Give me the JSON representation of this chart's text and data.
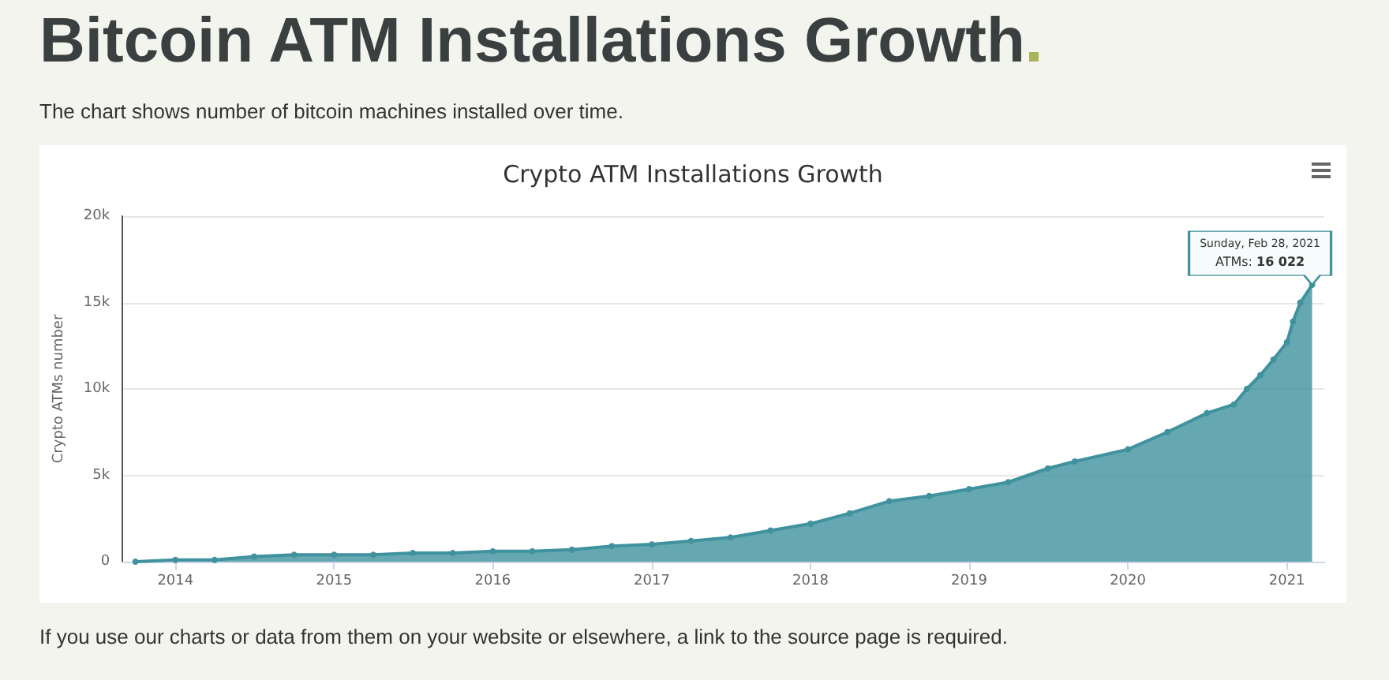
{
  "chart_data": {
    "type": "area",
    "title": "Bitcoin ATM Installations Growth",
    "subtitle": "The chart shows number of bitcoin machines installed over time.",
    "ylabel": "Crypto ATMs number",
    "annotations": [
      "Crypto ATM Installations Growth",
      "Sunday, Feb 28, 2021",
      "If you use our charts or data from them on your website or elsewhere, a link to the source page is required."
    ],
    "x": [
      "2013-10-01",
      "2014-01-01",
      "2014-04-01",
      "2014-07-01",
      "2014-10-01",
      "2015-01-01",
      "2015-04-01",
      "2015-07-01",
      "2015-10-01",
      "2016-01-01",
      "2016-04-01",
      "2016-07-01",
      "2016-10-01",
      "2017-01-01",
      "2017-04-01",
      "2017-07-01",
      "2017-10-01",
      "2018-01-01",
      "2018-04-01",
      "2018-07-01",
      "2018-10-01",
      "2019-01-01",
      "2019-04-01",
      "2019-07-01",
      "2019-09-01",
      "2020-01-01",
      "2020-04-01",
      "2020-07-01",
      "2020-09-01",
      "2020-10-01",
      "2020-11-01",
      "2020-12-01",
      "2021-01-01",
      "2021-01-15",
      "2021-02-01",
      "2021-02-28"
    ],
    "series": [
      {
        "name": "ATMs:",
        "color": "#3f929e",
        "values": [
          0,
          100,
          100,
          300,
          400,
          400,
          400,
          500,
          500,
          600,
          600,
          700,
          900,
          1000,
          1200,
          1400,
          1800,
          2200,
          2800,
          3500,
          3800,
          4200,
          4600,
          5400,
          5800,
          6500,
          7500,
          8600,
          9100,
          10000,
          10800,
          11700,
          12700,
          13900,
          15000,
          16022
        ],
        "value_labels": [
          null,
          null,
          null,
          null,
          null,
          null,
          null,
          null,
          null,
          null,
          null,
          null,
          null,
          null,
          null,
          null,
          null,
          null,
          null,
          null,
          null,
          null,
          null,
          null,
          null,
          null,
          null,
          null,
          null,
          null,
          null,
          null,
          null,
          null,
          null,
          "16 022"
        ]
      }
    ],
    "xlim": [
      "2013-09-01",
      "2021-03-28"
    ],
    "xticks": [
      "2014",
      "2015",
      "2016",
      "2017",
      "2018",
      "2019",
      "2020",
      "2021"
    ],
    "ylim": [
      0,
      20000
    ],
    "yticks": [
      0,
      {
        "value": 5000,
        "label": "5k"
      },
      {
        "value": 10000,
        "label": "10k"
      },
      {
        "value": 15000,
        "label": "15k"
      },
      {
        "value": 20000,
        "label": "20k"
      }
    ],
    "grid": "y",
    "legend": false,
    "marker": "circle"
  }
}
